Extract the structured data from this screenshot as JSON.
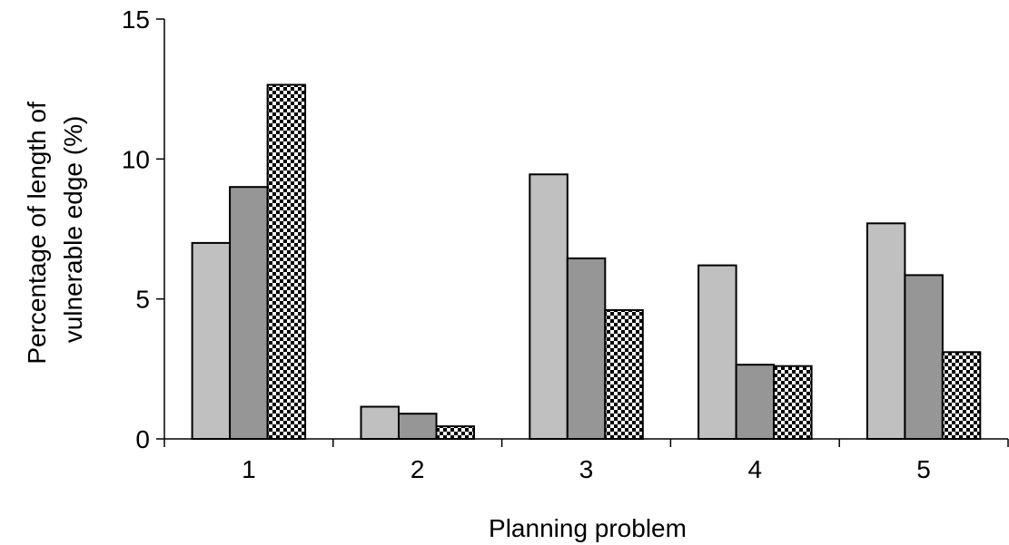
{
  "chart_data": {
    "type": "bar",
    "title": "",
    "xlabel": "Planning problem",
    "ylabel_lines": [
      "Percentage of length of",
      "vulnerable edge (%)"
    ],
    "categories": [
      "1",
      "2",
      "3",
      "4",
      "5"
    ],
    "ylim": [
      0,
      15
    ],
    "yticks": [
      0,
      5,
      10,
      15
    ],
    "grid": false,
    "legend": "none",
    "series": [
      {
        "fill": "#c0c0c0",
        "pattern": "solid",
        "values": [
          7.0,
          1.15,
          9.45,
          6.2,
          7.7
        ]
      },
      {
        "fill": "#969696",
        "pattern": "solid",
        "values": [
          9.0,
          0.9,
          6.45,
          2.65,
          5.85
        ]
      },
      {
        "fill": "#000000",
        "pattern": "checker",
        "values": [
          12.65,
          0.45,
          4.6,
          2.6,
          3.1
        ]
      }
    ]
  }
}
